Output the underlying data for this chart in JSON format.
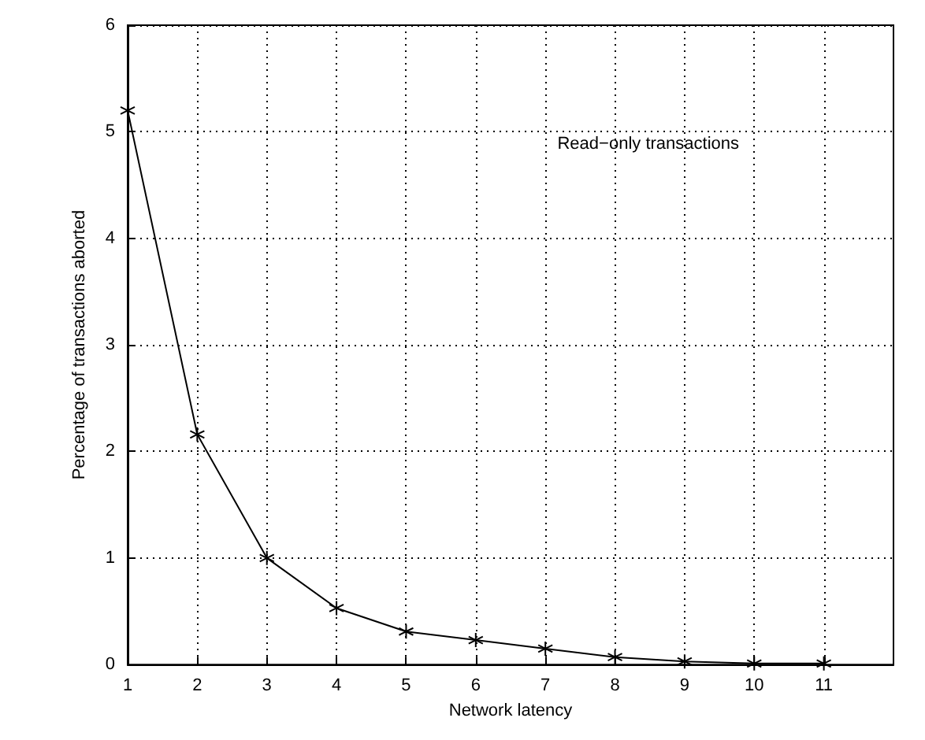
{
  "chart_data": {
    "type": "line",
    "xlabel": "Network latency",
    "ylabel": "Percentage of transactions aborted",
    "annotations": [
      "Read−only transactions"
    ],
    "x": [
      1,
      2,
      3,
      4,
      5,
      6,
      7,
      8,
      9,
      10,
      11
    ],
    "series": [
      {
        "color": "#000000",
        "values": [
          5.2,
          2.16,
          1.0,
          0.53,
          0.31,
          0.23,
          0.15,
          0.07,
          0.03,
          0.01,
          0.01
        ]
      }
    ],
    "xlim": [
      1,
      12
    ],
    "xticks": [
      1,
      2,
      3,
      4,
      5,
      6,
      7,
      8,
      9,
      10,
      11
    ],
    "ylim": [
      0,
      6
    ],
    "yticks": [
      0,
      1,
      2,
      3,
      4,
      5,
      6
    ],
    "grid": true,
    "marker": "cross",
    "line_style": "solid"
  }
}
